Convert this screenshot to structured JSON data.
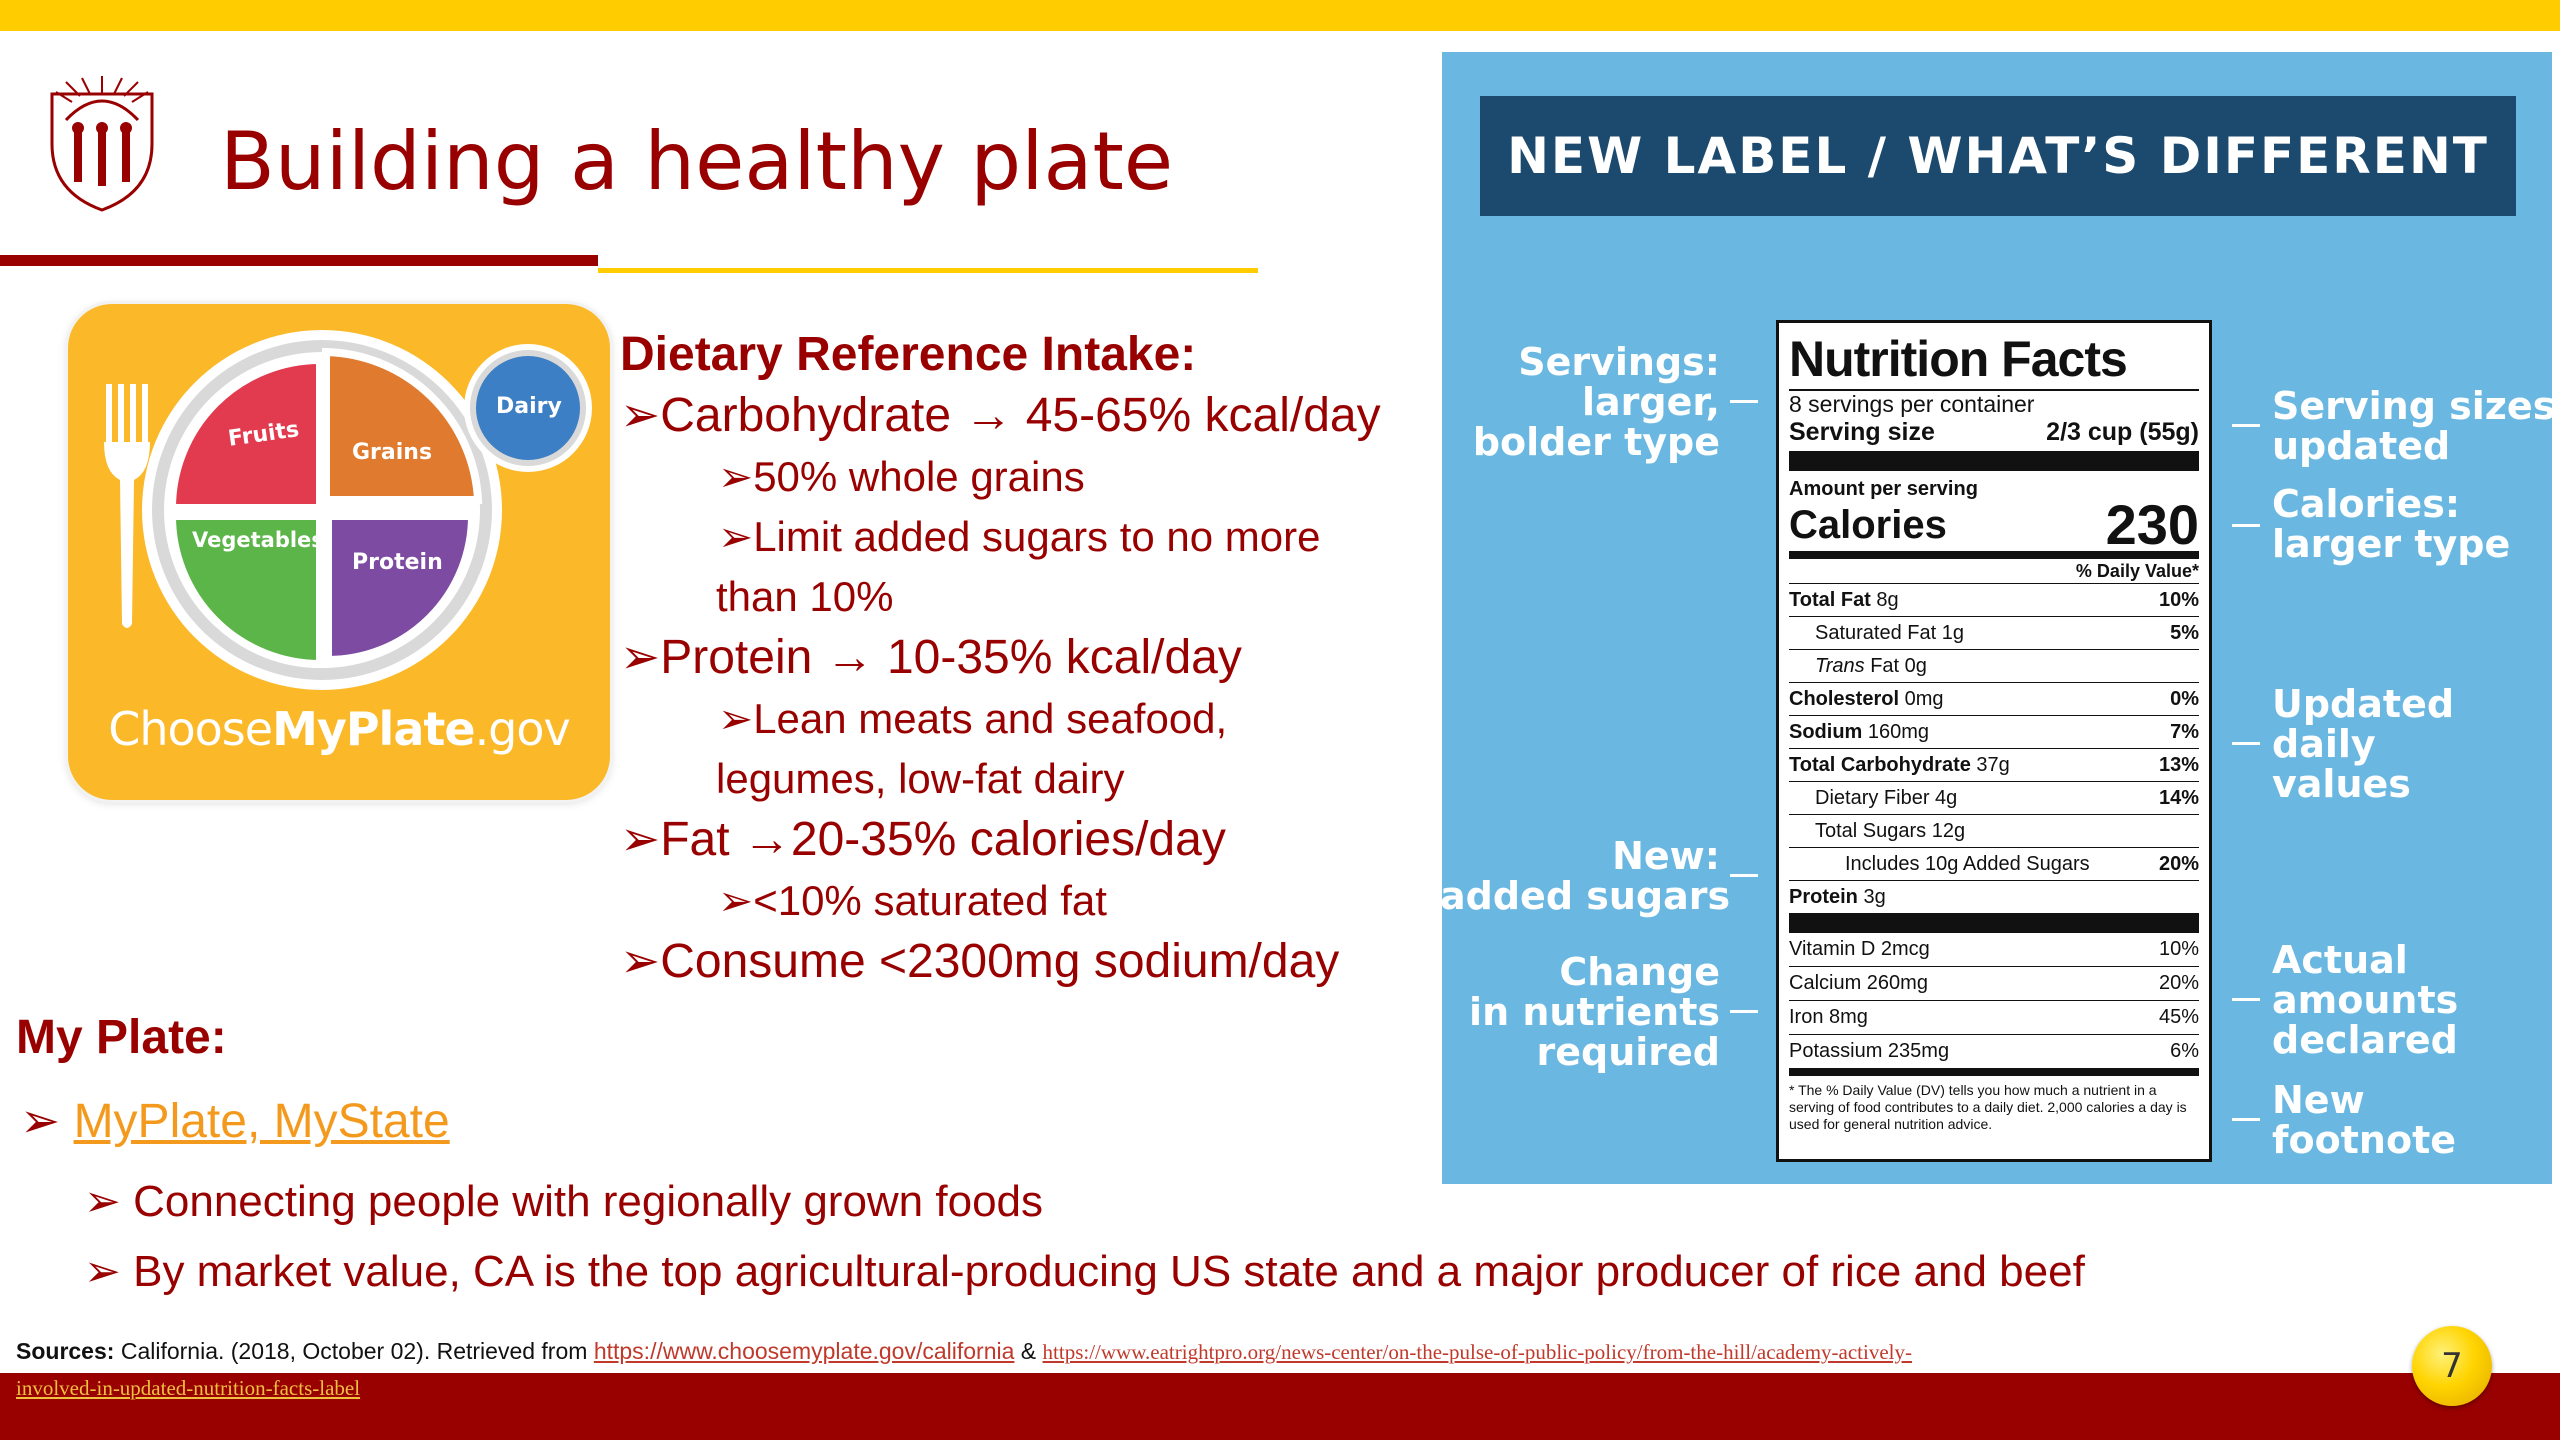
{
  "slide": {
    "title": "Building a healthy plate",
    "page_number": "7",
    "colors": {
      "cardinal": "#990000",
      "gold": "#ffcc00",
      "panel_blue": "#6ab8e2",
      "banner_navy": "#1c4a6e",
      "link_orange": "#f39a1e"
    }
  },
  "myplate_image": {
    "brand_prefix": "Choose",
    "brand_bold": "MyPlate",
    "brand_suffix": ".gov",
    "sections": [
      "Fruits",
      "Grains",
      "Vegetables",
      "Protein",
      "Dairy"
    ]
  },
  "dri": {
    "heading": "Dietary Reference Intake:",
    "lines": [
      "➢Carbohydrate → 45-65% kcal/day",
      "➢50% whole grains",
      "➢Limit added sugars to no more",
      "than 10%",
      "➢Protein → 10-35% kcal/day",
      "➢Lean meats and seafood,",
      "legumes, low-fat dairy",
      "➢Fat →20-35% calories/day",
      "➢<10% saturated fat",
      "➢Consume <2300mg sodium/day"
    ]
  },
  "myplate_section": {
    "heading": "My Plate:",
    "bullet": "➢",
    "link_text": "MyPlate, MyState",
    "sub_bullet": "➢",
    "items": [
      "Connecting people with regionally grown foods",
      "By market value, CA is the top agricultural-producing US state and a major producer of rice and beef"
    ]
  },
  "sources": {
    "label": "Sources:",
    "text": " California. (2018, October 02). Retrieved from ",
    "link1": "https://www.choosemyplate.gov/california",
    "amp": " & ",
    "link2": "https://www.eatrightpro.org/news-center/on-the-pulse-of-public-policy/from-the-hill/academy-actively-",
    "link2_cont": "involved-in-updated-nutrition-facts-label"
  },
  "label_panel": {
    "banner": "NEW LABEL / WHAT’S DIFFERENT",
    "left_callouts": [
      [
        "Servings:",
        "larger,",
        "bolder type"
      ],
      [
        "New:",
        "added sugars"
      ],
      [
        "Change",
        "in nutrients",
        "required"
      ]
    ],
    "right_callouts": [
      [
        "Serving sizes",
        "updated"
      ],
      [
        "Calories:",
        "larger type"
      ],
      [
        "Updated",
        "daily",
        "values"
      ],
      [
        "Actual",
        "amounts",
        "declared"
      ],
      [
        "New",
        "footnote"
      ]
    ]
  },
  "nutrition_facts": {
    "title": "Nutrition Facts",
    "servings_per_container": "8 servings per container",
    "serving_size_label": "Serving size",
    "serving_size_value": "2/3 cup (55g)",
    "amount_per_serving": "Amount per serving",
    "calories_label": "Calories",
    "calories_value": "230",
    "dv_header": "% Daily Value*",
    "rows": [
      {
        "name": "Total Fat",
        "amount": " 8g",
        "dv": "10%"
      },
      {
        "name": "Saturated Fat 1g",
        "dv": "5%"
      },
      {
        "name": "Trans",
        "amount": " Fat 0g",
        "dv": ""
      },
      {
        "name": "Cholesterol",
        "amount": " 0mg",
        "dv": "0%"
      },
      {
        "name": "Sodium",
        "amount": " 160mg",
        "dv": "7%"
      },
      {
        "name": "Total Carbohydrate",
        "amount": " 37g",
        "dv": "13%"
      },
      {
        "name": "Dietary Fiber 4g",
        "dv": "14%"
      },
      {
        "name": "Total Sugars 12g",
        "dv": ""
      },
      {
        "name": "Includes 10g Added Sugars",
        "dv": "20%"
      },
      {
        "name": "Protein",
        "amount": " 3g",
        "dv": ""
      }
    ],
    "micronutrients": [
      {
        "name": "Vitamin D 2mcg",
        "dv": "10%"
      },
      {
        "name": "Calcium 260mg",
        "dv": "20%"
      },
      {
        "name": "Iron 8mg",
        "dv": "45%"
      },
      {
        "name": "Potassium 235mg",
        "dv": "6%"
      }
    ],
    "footnote": "* The % Daily Value (DV) tells you how much a nutrient in a serving of food contributes to a daily diet. 2,000 calories a day is used for general nutrition advice."
  }
}
